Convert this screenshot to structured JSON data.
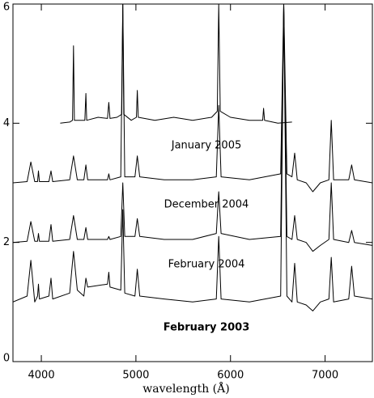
{
  "chart_data": {
    "type": "line",
    "x_label": "wavelength (Å)",
    "x_label_color": "#e8262a",
    "xlim": [
      3700,
      7500
    ],
    "xticks": [
      4000,
      5000,
      6000,
      7000
    ],
    "ylim": [
      0,
      6
    ],
    "yticks": [
      0,
      2,
      4,
      6
    ],
    "series": [
      {
        "name": "January 2005",
        "color": "#000000",
        "x": [
          4200,
          4300,
          4330,
          4340,
          4350,
          4400,
          4460,
          4471,
          4480,
          4600,
          4700,
          4713,
          4726,
          4800,
          4850,
          4861,
          4872,
          4950,
          5005,
          5015,
          5025,
          5200,
          5400,
          5600,
          5800,
          5860,
          5876,
          5892,
          6000,
          6200,
          6340,
          6350,
          6360,
          6500,
          6650
        ],
        "values": [
          4.0,
          4.02,
          4.05,
          5.3,
          4.05,
          4.05,
          4.05,
          4.5,
          4.05,
          4.1,
          4.08,
          4.35,
          4.08,
          4.1,
          4.15,
          6,
          4.15,
          4.05,
          4.1,
          4.55,
          4.1,
          4.05,
          4.1,
          4.05,
          4.1,
          4.2,
          6,
          4.2,
          4.1,
          4.05,
          4.05,
          4.25,
          4.05,
          4.0,
          4.02
        ]
      },
      {
        "name": "December 2004",
        "color": "#000000",
        "x": [
          3700,
          3850,
          3889,
          3930,
          3960,
          3970,
          3980,
          4080,
          4102,
          4120,
          4300,
          4340,
          4380,
          4450,
          4471,
          4490,
          4700,
          4713,
          4726,
          4840,
          4861,
          4882,
          4990,
          5015,
          5040,
          5300,
          5600,
          5850,
          5876,
          5900,
          6200,
          6530,
          6563,
          6596,
          6650,
          6678,
          6706,
          6800,
          6870,
          6950,
          7040,
          7065,
          7090,
          7250,
          7281,
          7310,
          7500
        ],
        "values": [
          3.0,
          3.02,
          3.35,
          3.02,
          3.02,
          3.2,
          3.02,
          3.02,
          3.2,
          3.02,
          3.05,
          3.45,
          3.05,
          3.05,
          3.3,
          3.05,
          3.05,
          3.15,
          3.05,
          3.1,
          6,
          3.1,
          3.1,
          3.45,
          3.1,
          3.05,
          3.05,
          3.1,
          4.3,
          3.1,
          3.05,
          3.15,
          6,
          3.15,
          3.1,
          3.5,
          3.05,
          3.0,
          2.85,
          3.0,
          3.05,
          4.05,
          3.05,
          3.05,
          3.3,
          3.05,
          3.0
        ]
      },
      {
        "name": "February 2004",
        "color": "#000000",
        "x": [
          3700,
          3850,
          3889,
          3930,
          3960,
          3970,
          3980,
          4080,
          4102,
          4120,
          4300,
          4340,
          4380,
          4450,
          4471,
          4490,
          4700,
          4713,
          4726,
          4840,
          4861,
          4882,
          4990,
          5015,
          5040,
          5300,
          5600,
          5850,
          5876,
          5900,
          6200,
          6530,
          6563,
          6596,
          6650,
          6678,
          6706,
          6800,
          6870,
          6950,
          7040,
          7065,
          7090,
          7250,
          7281,
          7310,
          7500
        ],
        "values": [
          2.0,
          2.02,
          2.35,
          2.02,
          2.02,
          2.15,
          2.02,
          2.02,
          2.3,
          2.02,
          2.05,
          2.45,
          2.05,
          2.05,
          2.25,
          2.05,
          2.05,
          2.1,
          2.05,
          2.1,
          3.0,
          2.1,
          2.1,
          2.4,
          2.1,
          2.05,
          2.05,
          2.15,
          2.85,
          2.15,
          2.05,
          2.1,
          6,
          2.1,
          2.05,
          2.45,
          2.05,
          2.0,
          1.85,
          1.95,
          2.05,
          3.0,
          2.05,
          2.0,
          2.2,
          2.0,
          1.95
        ]
      },
      {
        "name": "February 2003",
        "color": "#000000",
        "x": [
          3700,
          3850,
          3889,
          3930,
          3960,
          3970,
          3980,
          4080,
          4102,
          4120,
          4300,
          4340,
          4380,
          4450,
          4471,
          4490,
          4700,
          4713,
          4726,
          4840,
          4861,
          4882,
          4990,
          5015,
          5040,
          5300,
          5600,
          5850,
          5876,
          5900,
          6200,
          6530,
          6563,
          6596,
          6650,
          6678,
          6706,
          6800,
          6870,
          6950,
          7040,
          7065,
          7090,
          7250,
          7281,
          7310,
          7500
        ],
        "values": [
          1.0,
          1.1,
          1.7,
          1.0,
          1.1,
          1.3,
          1.05,
          1.1,
          1.4,
          1.05,
          1.15,
          1.85,
          1.2,
          1.1,
          1.4,
          1.25,
          1.3,
          1.5,
          1.25,
          1.2,
          2.55,
          1.15,
          1.1,
          1.55,
          1.1,
          1.05,
          1.0,
          1.05,
          2.1,
          1.05,
          1.0,
          1.1,
          6,
          1.1,
          1.0,
          1.65,
          1.0,
          0.95,
          0.85,
          1.0,
          1.05,
          1.75,
          1.0,
          1.05,
          1.6,
          1.1,
          1.05
        ]
      }
    ]
  }
}
